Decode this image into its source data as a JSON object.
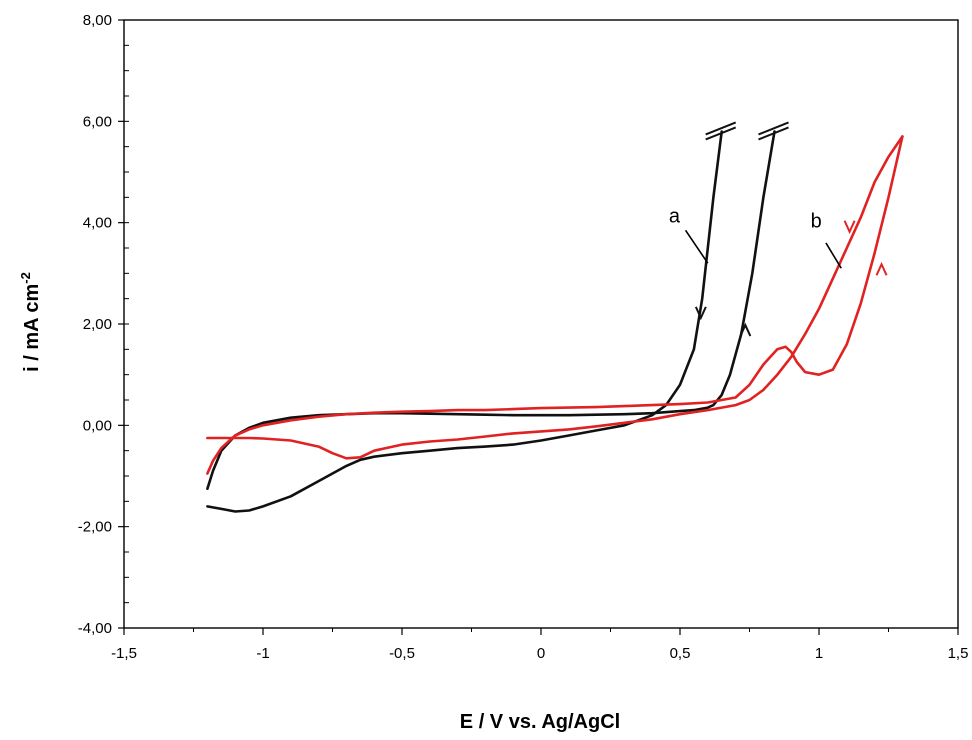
{
  "chart_data": {
    "type": "line",
    "title": "",
    "xlabel": "E / V vs. Ag/AgCl",
    "ylabel_main": "i / mA cm",
    "ylabel_sup": "-2",
    "xlim": [
      -1.5,
      1.5
    ],
    "ylim": [
      -4.0,
      8.0
    ],
    "xticks": [
      -1.5,
      -1.0,
      -0.5,
      0.0,
      0.5,
      1.0,
      1.5
    ],
    "xtick_labels": [
      "-1,5",
      "-1",
      "-0,5",
      "0",
      "0,5",
      "1",
      "1,5"
    ],
    "yticks": [
      -4.0,
      -2.0,
      0.0,
      2.0,
      4.0,
      6.0,
      8.0
    ],
    "ytick_labels": [
      "-4,00",
      "-2,00",
      "0,00",
      "2,00",
      "4,00",
      "6,00",
      "8,00"
    ],
    "grid": false,
    "series": [
      {
        "name": "a",
        "color": "#111111",
        "segments": [
          {
            "x": [
              0.65,
              0.62,
              0.58,
              0.55,
              0.5,
              0.45,
              0.4,
              0.3,
              0.2,
              0.1,
              0.0,
              -0.1,
              -0.2,
              -0.3,
              -0.4,
              -0.5,
              -0.6,
              -0.65,
              -0.7,
              -0.8,
              -0.9,
              -1.0,
              -1.05,
              -1.1,
              -1.15,
              -1.2
            ],
            "y": [
              5.8,
              4.5,
              2.5,
              1.5,
              0.8,
              0.4,
              0.2,
              0.0,
              -0.1,
              -0.2,
              -0.3,
              -0.38,
              -0.42,
              -0.45,
              -0.5,
              -0.55,
              -0.62,
              -0.68,
              -0.8,
              -1.1,
              -1.4,
              -1.6,
              -1.68,
              -1.7,
              -1.65,
              -1.6
            ]
          },
          {
            "x": [
              -1.2,
              -1.18,
              -1.15,
              -1.1,
              -1.05,
              -1.0,
              -0.9,
              -0.8,
              -0.7,
              -0.6,
              -0.5,
              -0.4,
              -0.3,
              -0.2,
              -0.1,
              0.0,
              0.1,
              0.2,
              0.3,
              0.4,
              0.5,
              0.55,
              0.6,
              0.62,
              0.65,
              0.68,
              0.72,
              0.76,
              0.8,
              0.84
            ],
            "y": [
              -1.25,
              -0.9,
              -0.5,
              -0.2,
              -0.05,
              0.05,
              0.15,
              0.2,
              0.22,
              0.24,
              0.24,
              0.23,
              0.22,
              0.21,
              0.2,
              0.2,
              0.2,
              0.21,
              0.22,
              0.24,
              0.28,
              0.3,
              0.35,
              0.4,
              0.6,
              1.0,
              1.8,
              3.0,
              4.5,
              5.8
            ]
          }
        ],
        "break_marks_at": [
          [
            0.65,
            5.8
          ],
          [
            0.84,
            5.8
          ]
        ],
        "arrows": [
          {
            "x": 0.575,
            "y": 2.2,
            "direction": "down"
          },
          {
            "x": 0.735,
            "y": 1.9,
            "direction": "up"
          }
        ]
      },
      {
        "name": "b",
        "color": "#e02222",
        "segments": [
          {
            "x": [
              1.3,
              1.25,
              1.2,
              1.15,
              1.1,
              1.05,
              1.0,
              0.95,
              0.9,
              0.85,
              0.8,
              0.75,
              0.7,
              0.6,
              0.5,
              0.4,
              0.3,
              0.2,
              0.1,
              0.0,
              -0.1,
              -0.2,
              -0.3,
              -0.4,
              -0.5,
              -0.6,
              -0.65,
              -0.7,
              -0.75,
              -0.8,
              -0.9,
              -1.0,
              -1.05,
              -1.1,
              -1.15,
              -1.2
            ],
            "y": [
              5.7,
              5.3,
              4.8,
              4.1,
              3.5,
              2.9,
              2.3,
              1.8,
              1.35,
              1.0,
              0.7,
              0.5,
              0.4,
              0.3,
              0.22,
              0.12,
              0.05,
              -0.02,
              -0.08,
              -0.12,
              -0.16,
              -0.22,
              -0.28,
              -0.32,
              -0.38,
              -0.5,
              -0.63,
              -0.65,
              -0.55,
              -0.42,
              -0.3,
              -0.26,
              -0.25,
              -0.25,
              -0.25,
              -0.25
            ]
          },
          {
            "x": [
              -1.2,
              -1.18,
              -1.15,
              -1.12,
              -1.1,
              -1.05,
              -1.0,
              -0.9,
              -0.8,
              -0.7,
              -0.6,
              -0.5,
              -0.4,
              -0.3,
              -0.2,
              -0.1,
              0.0,
              0.1,
              0.2,
              0.3,
              0.4,
              0.5,
              0.6,
              0.7,
              0.75,
              0.8,
              0.85,
              0.88,
              0.9,
              0.92,
              0.95,
              1.0,
              1.05,
              1.1,
              1.15,
              1.2,
              1.25,
              1.3
            ],
            "y": [
              -0.95,
              -0.7,
              -0.45,
              -0.3,
              -0.2,
              -0.08,
              0.0,
              0.1,
              0.17,
              0.22,
              0.25,
              0.27,
              0.28,
              0.3,
              0.3,
              0.32,
              0.34,
              0.35,
              0.36,
              0.38,
              0.4,
              0.42,
              0.45,
              0.55,
              0.8,
              1.2,
              1.5,
              1.55,
              1.45,
              1.25,
              1.05,
              1.0,
              1.1,
              1.6,
              2.4,
              3.4,
              4.5,
              5.7
            ]
          }
        ],
        "arrows": [
          {
            "x": 1.11,
            "y": 3.9,
            "direction": "down"
          },
          {
            "x": 1.225,
            "y": 3.1,
            "direction": "up"
          }
        ]
      }
    ],
    "annotations": [
      {
        "text": "a",
        "x": 0.48,
        "y": 4.0,
        "leader_from": [
          0.52,
          3.85
        ],
        "leader_to": [
          0.6,
          3.2
        ]
      },
      {
        "text": "b",
        "x": 0.99,
        "y": 3.9,
        "leader_from": [
          1.025,
          3.6
        ],
        "leader_to": [
          1.08,
          3.1
        ]
      }
    ]
  }
}
